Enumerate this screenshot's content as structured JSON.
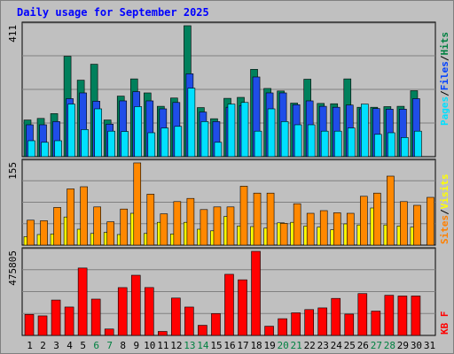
{
  "title": "Daily usage for September 2025",
  "chart_data": [
    {
      "type": "bar",
      "panel": "hits_files_pages",
      "ymax_label": "411",
      "ylim": [
        0,
        411
      ],
      "grid": true,
      "legend": [
        {
          "text": "Pages",
          "color": "#00e0ff"
        },
        {
          "text": "/",
          "color": "#000000"
        },
        {
          "text": "Files",
          "color": "#0040ff"
        },
        {
          "text": "/",
          "color": "#000000"
        },
        {
          "text": "Hits",
          "color": "#008040"
        }
      ],
      "series": [
        {
          "name": "Hits",
          "color": "#00805c",
          "values": [
            115,
            120,
            135,
            315,
            240,
            290,
            115,
            190,
            244,
            200,
            158,
            184,
            411,
            154,
            119,
            183,
            186,
            274,
            214,
            206,
            168,
            243,
            167,
            166,
            244,
            155,
            155,
            157,
            158,
            207,
            null
          ]
        },
        {
          "name": "Files",
          "color": "#1f4de8",
          "values": [
            100,
            100,
            110,
            182,
            200,
            174,
            102,
            175,
            204,
            175,
            150,
            170,
            260,
            140,
            110,
            155,
            160,
            250,
            200,
            200,
            163,
            175,
            158,
            155,
            162,
            150,
            151,
            149,
            149,
            182,
            null
          ]
        },
        {
          "name": "Pages",
          "color": "#00e0ff",
          "values": [
            50,
            45,
            50,
            165,
            85,
            150,
            80,
            79,
            157,
            75,
            90,
            95,
            215,
            110,
            45,
            165,
            170,
            80,
            150,
            110,
            100,
            100,
            80,
            80,
            90,
            165,
            70,
            75,
            60,
            80,
            null
          ]
        }
      ]
    },
    {
      "type": "bar",
      "panel": "visits_sites",
      "ymax_label": "155",
      "ylim": [
        0,
        155
      ],
      "grid": true,
      "legend": [
        {
          "text": "Sites",
          "color": "#ff8000"
        },
        {
          "text": "/",
          "color": "#000000"
        },
        {
          "text": "Visits",
          "color": "#ffff00"
        }
      ],
      "series": [
        {
          "name": "Visits",
          "color": "#ffff00",
          "values": [
            16,
            20,
            21,
            53,
            30,
            22,
            24,
            20,
            60,
            22,
            43,
            21,
            43,
            30,
            27,
            54,
            36,
            35,
            32,
            42,
            43,
            36,
            34,
            29,
            40,
            38,
            70,
            38,
            36,
            34,
            null
          ]
        },
        {
          "name": "Sites",
          "color": "#ff8800",
          "values": [
            47,
            46,
            71,
            106,
            110,
            72,
            44,
            68,
            155,
            96,
            59,
            82,
            88,
            67,
            72,
            72,
            111,
            98,
            98,
            41,
            78,
            60,
            65,
            61,
            60,
            92,
            98,
            130,
            82,
            75,
            90
          ]
        }
      ]
    },
    {
      "type": "bar",
      "panel": "kbytes",
      "ymax_label": "475805",
      "ylim": [
        0,
        475805
      ],
      "grid": true,
      "legend": [
        {
          "text": "KB F",
          "color": "#ff0000"
        }
      ],
      "series": [
        {
          "name": "KB F",
          "color": "#ff0000",
          "values": [
            118840,
            110580,
            200130,
            160630,
            381390,
            205460,
            36240,
            270690,
            340510,
            270990,
            22590,
            211440,
            160520,
            57290,
            123660,
            345850,
            314800,
            475805,
            52100,
            94580,
            127860,
            146210,
            155690,
            209460,
            120560,
            236790,
            137550,
            227160,
            223110,
            223110,
            null
          ]
        }
      ]
    },
    {
      "type": "bar",
      "panel": "x_axis",
      "categories": [
        "1",
        "2",
        "3",
        "4",
        "5",
        "6",
        "7",
        "8",
        "9",
        "10",
        "11",
        "12",
        "13",
        "14",
        "15",
        "16",
        "17",
        "18",
        "19",
        "20",
        "21",
        "22",
        "23",
        "24",
        "25",
        "26",
        "27",
        "28",
        "29",
        "30",
        "31"
      ],
      "weekend_color": "#008040",
      "weekend_days": [
        6,
        7,
        13,
        14,
        20,
        21,
        27,
        28
      ]
    }
  ]
}
